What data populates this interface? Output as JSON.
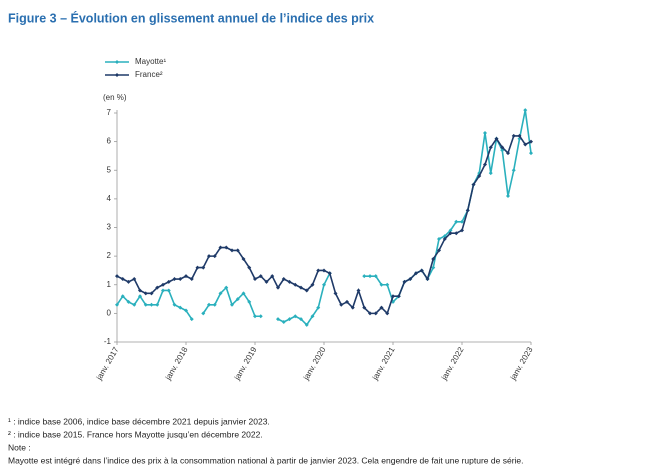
{
  "chart_data": {
    "type": "line",
    "title": "Figure 3 – Évolution en glissement annuel de l’indice des prix",
    "y_label": "(en %)",
    "categories": [
      "janv. 2017",
      null,
      null,
      null,
      null,
      null,
      null,
      null,
      null,
      null,
      null,
      null,
      "janv. 2018",
      null,
      null,
      null,
      null,
      null,
      null,
      null,
      null,
      null,
      null,
      null,
      "janv. 2019",
      null,
      null,
      null,
      null,
      null,
      null,
      null,
      null,
      null,
      null,
      null,
      "janv. 2020",
      null,
      null,
      null,
      null,
      null,
      null,
      null,
      null,
      null,
      null,
      null,
      "janv. 2021",
      null,
      null,
      null,
      null,
      null,
      null,
      null,
      null,
      null,
      null,
      null,
      "janv. 2022",
      null,
      null,
      null,
      null,
      null,
      null,
      null,
      null,
      null,
      null,
      null,
      "janv. 2023"
    ],
    "series": [
      {
        "name": "Mayotte¹",
        "color": "#2ab0bd",
        "values": [
          0.3,
          0.6,
          0.4,
          0.3,
          0.6,
          0.3,
          0.3,
          0.3,
          0.8,
          0.8,
          0.3,
          0.2,
          0.1,
          -0.2,
          null,
          0.0,
          0.3,
          0.3,
          0.7,
          0.9,
          0.3,
          0.5,
          0.7,
          0.4,
          -0.1,
          -0.1,
          null,
          null,
          -0.2,
          -0.3,
          -0.2,
          -0.1,
          -0.2,
          -0.4,
          -0.1,
          0.2,
          1.0,
          1.4,
          null,
          null,
          null,
          null,
          null,
          1.3,
          1.3,
          1.3,
          1.0,
          1.0,
          0.4,
          0.6,
          1.1,
          1.2,
          1.4,
          1.5,
          1.2,
          1.6,
          2.6,
          2.7,
          2.9,
          3.2,
          3.2,
          3.6,
          4.5,
          4.9,
          6.3,
          4.9,
          6.1,
          5.7,
          4.1,
          5.0,
          6.1,
          7.1,
          5.6
        ]
      },
      {
        "name": "France²",
        "color": "#1f3a68",
        "values": [
          1.3,
          1.2,
          1.1,
          1.2,
          0.8,
          0.7,
          0.7,
          0.9,
          1.0,
          1.1,
          1.2,
          1.2,
          1.3,
          1.2,
          1.6,
          1.6,
          2.0,
          2.0,
          2.3,
          2.3,
          2.2,
          2.2,
          1.9,
          1.6,
          1.2,
          1.3,
          1.1,
          1.3,
          0.9,
          1.2,
          1.1,
          1.0,
          0.9,
          0.8,
          1.0,
          1.5,
          1.5,
          1.4,
          0.7,
          0.3,
          0.4,
          0.2,
          0.8,
          0.2,
          0.0,
          0.0,
          0.2,
          0.0,
          0.6,
          0.6,
          1.1,
          1.2,
          1.4,
          1.5,
          1.2,
          1.9,
          2.2,
          2.6,
          2.8,
          2.8,
          2.9,
          3.6,
          4.5,
          4.8,
          5.2,
          5.8,
          6.1,
          5.8,
          5.6,
          6.2,
          6.2,
          5.9,
          6.0
        ]
      }
    ],
    "ylim": [
      -1,
      7
    ],
    "yticks": [
      -1,
      0,
      1,
      2,
      3,
      4,
      5,
      6,
      7
    ],
    "grid": false,
    "legend": "top-left",
    "notes": [
      "¹ : indice base 2006, indice base décembre 2021 depuis janvier 2023.",
      "² : indice base 2015. France hors Mayotte jusqu’en décembre 2022.",
      "Note :",
      "Mayotte est intégré dans l’indice des prix à la consommation national à partir de janvier 2023. Cela engendre de fait une rupture de série."
    ]
  }
}
